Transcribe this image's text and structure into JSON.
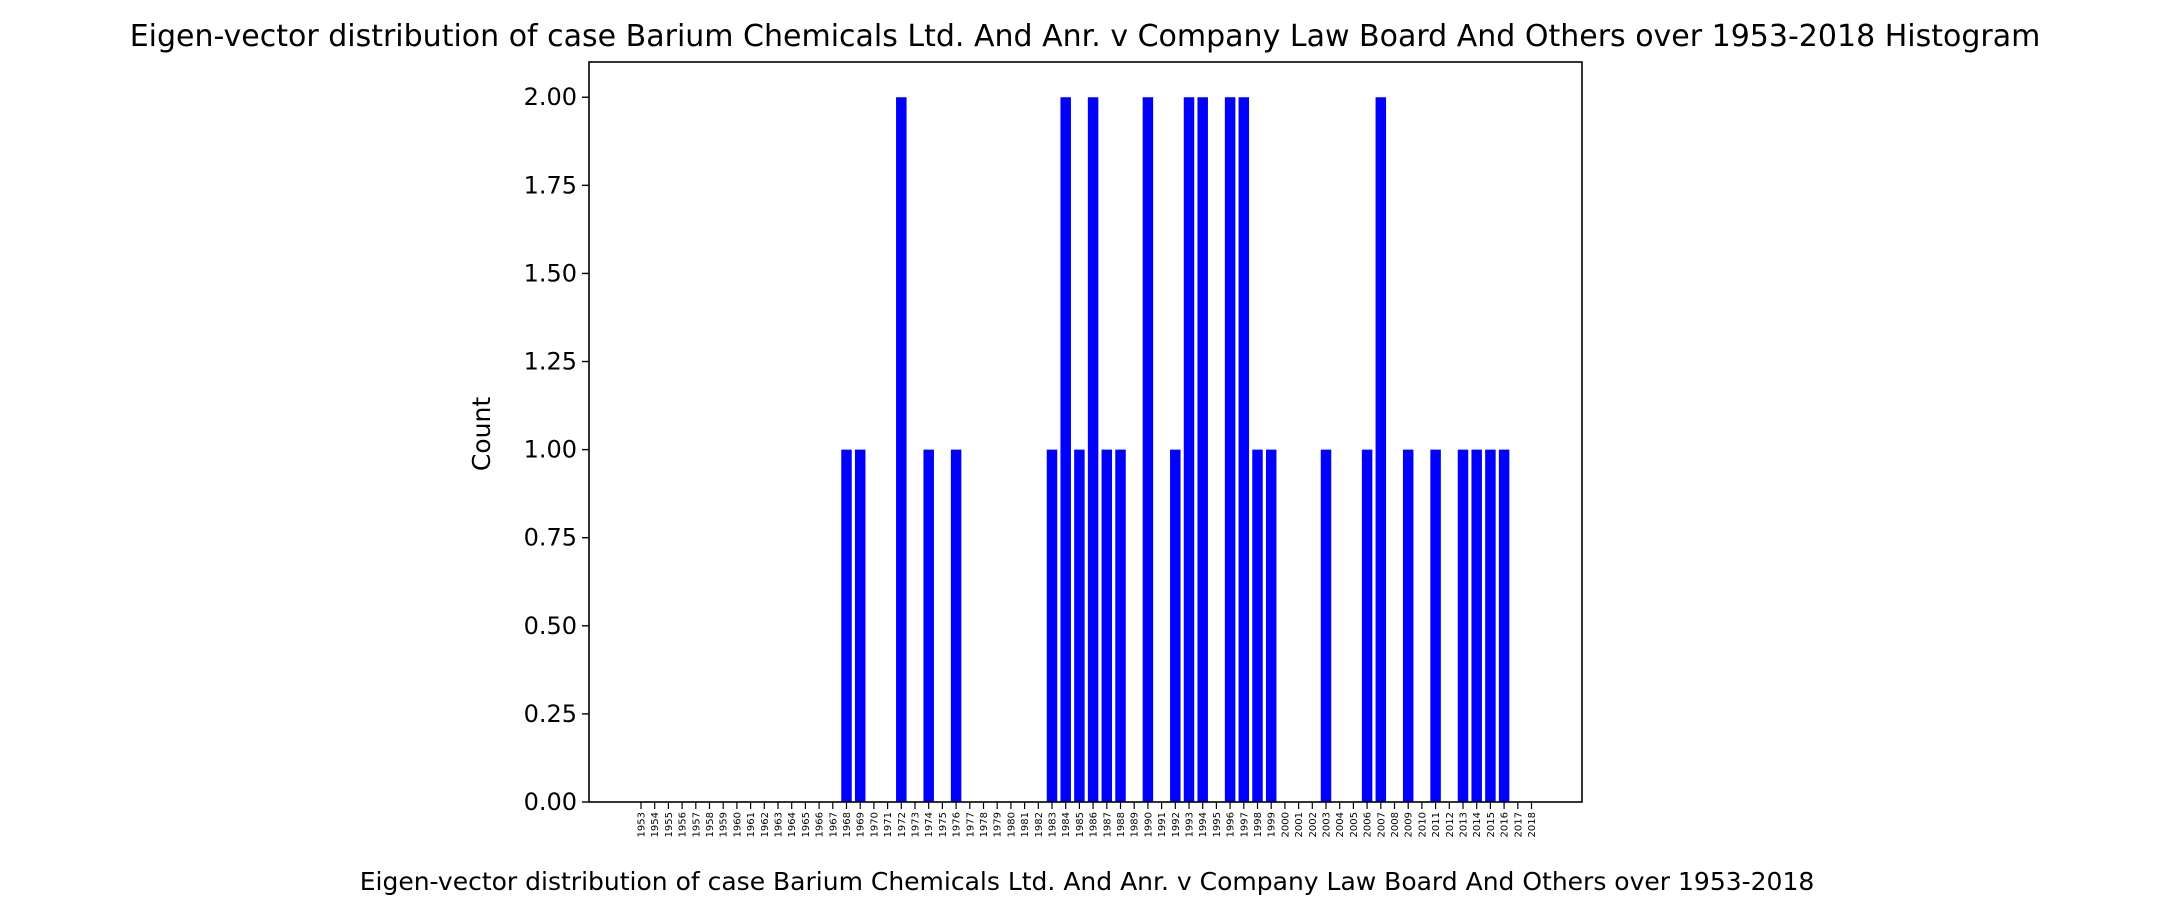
{
  "chart_data": {
    "type": "bar",
    "title": "Eigen-vector distribution of case Barium Chemicals Ltd. And Anr. v Company Law Board And Others over 1953-2018 Histogram",
    "xlabel": "Eigen-vector distribution of case Barium Chemicals Ltd. And Anr. v Company Law Board And Others over 1953-2018",
    "ylabel": "Count",
    "ylim": [
      0,
      2.1
    ],
    "yticks": [
      "0.00",
      "0.25",
      "0.50",
      "0.75",
      "1.00",
      "1.25",
      "1.50",
      "1.75",
      "2.00"
    ],
    "bar_color": "#0000ff",
    "grid": false,
    "categories": [
      "1953",
      "1954",
      "1955",
      "1956",
      "1957",
      "1958",
      "1959",
      "1960",
      "1961",
      "1962",
      "1963",
      "1964",
      "1965",
      "1966",
      "1967",
      "1968",
      "1969",
      "1970",
      "1971",
      "1972",
      "1973",
      "1974",
      "1975",
      "1976",
      "1977",
      "1978",
      "1979",
      "1980",
      "1981",
      "1982",
      "1983",
      "1984",
      "1985",
      "1986",
      "1987",
      "1988",
      "1989",
      "1990",
      "1991",
      "1992",
      "1993",
      "1994",
      "1995",
      "1996",
      "1997",
      "1998",
      "1999",
      "2000",
      "2001",
      "2002",
      "2003",
      "2004",
      "2005",
      "2006",
      "2007",
      "2008",
      "2009",
      "2010",
      "2011",
      "2012",
      "2013",
      "2014",
      "2015",
      "2016",
      "2017",
      "2018"
    ],
    "values": [
      0,
      0,
      0,
      0,
      0,
      0,
      0,
      0,
      0,
      0,
      0,
      0,
      0,
      0,
      0,
      1,
      1,
      0,
      0,
      2,
      0,
      1,
      0,
      1,
      0,
      0,
      0,
      0,
      0,
      0,
      1,
      2,
      1,
      2,
      1,
      1,
      0,
      2,
      0,
      1,
      2,
      2,
      0,
      2,
      2,
      1,
      1,
      0,
      0,
      0,
      1,
      0,
      0,
      1,
      2,
      0,
      1,
      0,
      1,
      0,
      1,
      1,
      1,
      1,
      0,
      0
    ]
  }
}
